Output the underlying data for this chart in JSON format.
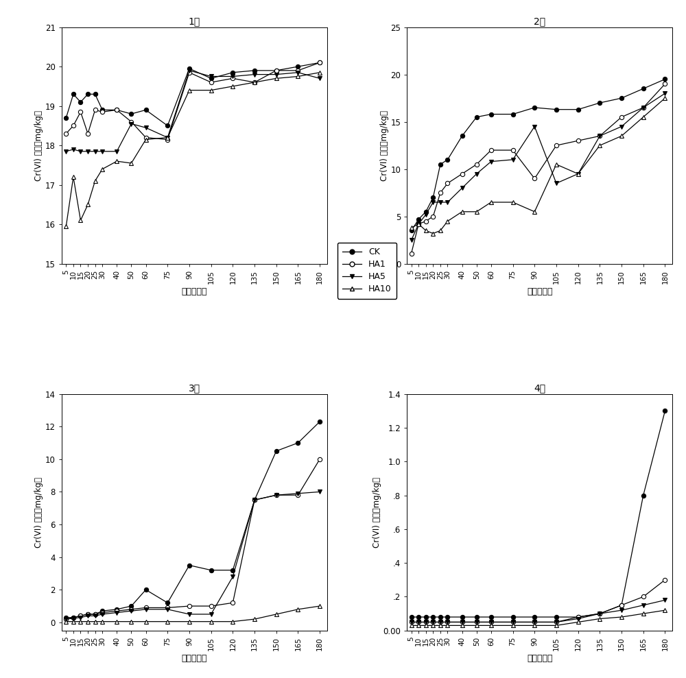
{
  "x_ticks": [
    5,
    10,
    15,
    20,
    25,
    30,
    40,
    50,
    60,
    75,
    90,
    105,
    120,
    135,
    150,
    165,
    180
  ],
  "plot1": {
    "title": "1区",
    "ylabel": "Cr(VI) 浓度（mg/kg）",
    "xlabel": "时间（天）",
    "ylim": [
      15,
      21
    ],
    "yticks": [
      15,
      16,
      17,
      18,
      19,
      20,
      21
    ],
    "ytick_labels": [
      "15",
      "16",
      "17",
      "18",
      "19",
      "20",
      "21"
    ],
    "CK": [
      18.7,
      19.3,
      19.1,
      19.3,
      19.3,
      18.9,
      18.9,
      18.8,
      18.9,
      18.5,
      19.95,
      19.7,
      19.85,
      19.9,
      19.9,
      20.0,
      20.1
    ],
    "HA1": [
      18.3,
      18.5,
      18.85,
      18.3,
      18.9,
      18.85,
      18.9,
      18.6,
      18.2,
      18.15,
      19.85,
      19.6,
      19.7,
      19.6,
      19.9,
      19.9,
      20.1
    ],
    "HA5": [
      17.85,
      17.9,
      17.85,
      17.85,
      17.85,
      17.85,
      17.85,
      18.55,
      18.45,
      18.2,
      19.9,
      19.75,
      19.75,
      19.8,
      19.8,
      19.85,
      19.7
    ],
    "HA10": [
      15.95,
      17.2,
      16.1,
      16.5,
      17.1,
      17.4,
      17.6,
      17.55,
      18.15,
      18.2,
      19.4,
      19.4,
      19.5,
      19.6,
      19.7,
      19.75,
      19.85
    ]
  },
  "plot2": {
    "title": "2区",
    "ylabel": "Cr(VI) 浓度（mg/kg）",
    "xlabel": "时间（天）",
    "ylim": [
      0,
      25
    ],
    "yticks": [
      0,
      5,
      10,
      15,
      20,
      25
    ],
    "ytick_labels": [
      "0",
      "5",
      "10",
      "15",
      "20",
      "25"
    ],
    "CK": [
      3.5,
      4.7,
      5.5,
      7.0,
      10.5,
      11.0,
      13.5,
      15.5,
      15.8,
      15.8,
      16.5,
      16.3,
      16.3,
      17.0,
      17.5,
      18.5,
      19.5
    ],
    "HA1": [
      1.1,
      4.2,
      4.5,
      5.0,
      7.5,
      8.5,
      9.5,
      10.5,
      12.0,
      12.0,
      9.0,
      12.5,
      13.0,
      13.5,
      15.5,
      16.5,
      19.0
    ],
    "HA5": [
      2.5,
      4.2,
      5.2,
      6.5,
      6.5,
      6.5,
      8.0,
      9.5,
      10.8,
      11.0,
      14.5,
      8.5,
      9.5,
      13.5,
      14.5,
      16.5,
      18.0
    ],
    "HA10": [
      3.8,
      4.2,
      3.5,
      3.2,
      3.5,
      4.5,
      5.5,
      5.5,
      6.5,
      6.5,
      5.5,
      10.5,
      9.5,
      12.5,
      13.5,
      15.5,
      17.5
    ]
  },
  "plot3": {
    "title": "3区",
    "ylabel": "Cr(VI) 浓度（mg/kg）",
    "xlabel": "时间（天）",
    "ylim": [
      -0.5,
      14
    ],
    "yticks": [
      0,
      2,
      4,
      6,
      8,
      10,
      12,
      14
    ],
    "ytick_labels": [
      "0",
      "2",
      "4",
      "6",
      "8",
      "10",
      "12",
      "14"
    ],
    "CK": [
      0.3,
      0.3,
      0.4,
      0.5,
      0.5,
      0.7,
      0.8,
      1.0,
      2.0,
      1.2,
      3.5,
      3.2,
      3.2,
      7.5,
      10.5,
      11.0,
      12.3
    ],
    "HA1": [
      0.2,
      0.3,
      0.4,
      0.5,
      0.5,
      0.6,
      0.7,
      0.8,
      0.9,
      0.9,
      1.0,
      1.0,
      1.2,
      7.5,
      7.8,
      7.8,
      10.0
    ],
    "HA5": [
      0.2,
      0.25,
      0.3,
      0.4,
      0.4,
      0.5,
      0.6,
      0.7,
      0.8,
      0.8,
      0.5,
      0.5,
      2.8,
      7.5,
      7.8,
      7.9,
      8.0
    ],
    "HA10": [
      0.05,
      0.05,
      0.05,
      0.05,
      0.05,
      0.05,
      0.05,
      0.05,
      0.05,
      0.05,
      0.05,
      0.05,
      0.05,
      0.2,
      0.5,
      0.8,
      1.0
    ]
  },
  "plot4": {
    "title": "4区",
    "ylabel": "Cr(VI) 浓度（mg/kg）",
    "xlabel": "时间（天）",
    "ylim": [
      0.0,
      1.4
    ],
    "yticks": [
      0.0,
      0.2,
      0.4,
      0.6,
      0.8,
      1.0,
      1.2,
      1.4
    ],
    "ytick_labels": [
      "0.00",
      ".2",
      ".4",
      ".6",
      ".8",
      "1.0",
      "1.2",
      "1.4"
    ],
    "CK": [
      0.08,
      0.08,
      0.08,
      0.08,
      0.08,
      0.08,
      0.08,
      0.08,
      0.08,
      0.08,
      0.08,
      0.08,
      0.08,
      0.1,
      0.15,
      0.8,
      1.3
    ],
    "HA1": [
      0.05,
      0.05,
      0.05,
      0.05,
      0.05,
      0.05,
      0.05,
      0.05,
      0.05,
      0.05,
      0.05,
      0.05,
      0.08,
      0.1,
      0.15,
      0.2,
      0.3
    ],
    "HA5": [
      0.05,
      0.05,
      0.05,
      0.05,
      0.05,
      0.05,
      0.05,
      0.05,
      0.05,
      0.05,
      0.05,
      0.05,
      0.07,
      0.1,
      0.12,
      0.15,
      0.18
    ],
    "HA10": [
      0.03,
      0.03,
      0.03,
      0.03,
      0.03,
      0.03,
      0.03,
      0.03,
      0.03,
      0.03,
      0.03,
      0.03,
      0.05,
      0.07,
      0.08,
      0.1,
      0.12
    ]
  },
  "legend_labels": [
    "CK",
    "HA1",
    "HA5",
    "HA10"
  ],
  "line_color": "black",
  "bg_color": "#ffffff"
}
